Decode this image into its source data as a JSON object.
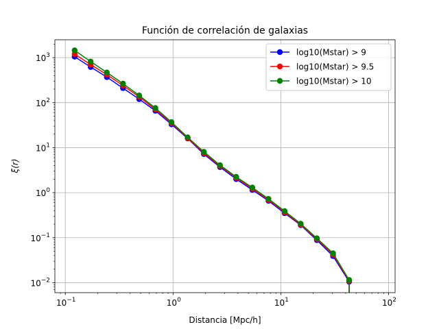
{
  "chart_data": {
    "type": "line",
    "title": "Función de correlación de galaxias",
    "xlabel": "Distancia [Mpc/h]",
    "ylabel": "ξ(r)",
    "xscale": "log",
    "yscale": "log",
    "xlim": [
      0.08,
      115
    ],
    "ylim": [
      0.006,
      2500
    ],
    "grid": true,
    "legend_position": "top-right",
    "x_major_ticks": [
      {
        "value": 0.1,
        "base": "10",
        "exp": "−1"
      },
      {
        "value": 1,
        "base": "10",
        "exp": "0"
      },
      {
        "value": 10,
        "base": "10",
        "exp": "1"
      },
      {
        "value": 100,
        "base": "10",
        "exp": "2"
      }
    ],
    "y_major_ticks": [
      {
        "value": 0.01,
        "base": "10",
        "exp": "−2"
      },
      {
        "value": 0.1,
        "base": "10",
        "exp": "−1"
      },
      {
        "value": 1,
        "base": "10",
        "exp": "0"
      },
      {
        "value": 10,
        "base": "10",
        "exp": "1"
      },
      {
        "value": 100,
        "base": "10",
        "exp": "2"
      },
      {
        "value": 1000,
        "base": "10",
        "exp": "3"
      }
    ],
    "x": [
      0.122,
      0.172,
      0.243,
      0.343,
      0.485,
      0.685,
      0.967,
      1.366,
      1.93,
      2.725,
      3.85,
      5.44,
      7.68,
      10.85,
      15.3,
      21.6,
      30.5,
      43.1
    ],
    "series": [
      {
        "name": "log10(Mstar) > 9",
        "color": "#0000ff",
        "values": [
          1050,
          620,
          370,
          210,
          120,
          66,
          33,
          16,
          7.2,
          3.7,
          2.0,
          1.15,
          0.66,
          0.35,
          0.19,
          0.088,
          0.039,
          0.0105
        ]
      },
      {
        "name": "log10(Mstar) > 9.5",
        "color": "#ff0000",
        "values": [
          1200,
          700,
          420,
          240,
          135,
          71,
          35,
          16.5,
          7.6,
          3.9,
          2.15,
          1.22,
          0.69,
          0.37,
          0.195,
          0.093,
          0.042,
          0.011
        ]
      },
      {
        "name": "log10(Mstar) > 10",
        "color": "#008000",
        "values": [
          1450,
          820,
          470,
          265,
          145,
          76,
          37,
          17,
          8.1,
          4.1,
          2.25,
          1.3,
          0.73,
          0.39,
          0.205,
          0.097,
          0.045,
          0.0115
        ]
      }
    ],
    "last_point_errorbar_lower": 0.006
  }
}
